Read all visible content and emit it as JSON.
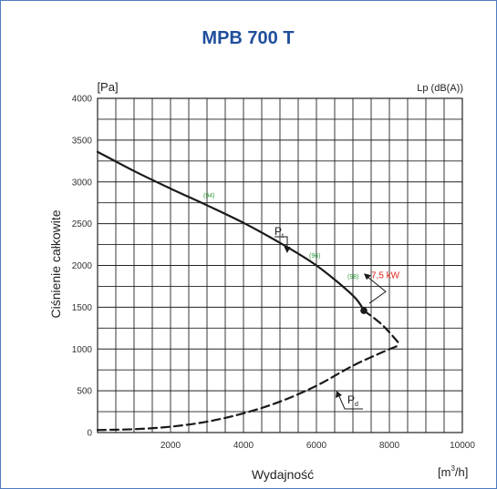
{
  "chart_data": {
    "type": "line",
    "title": "MPB 700 T",
    "xlabel": "Wydajność",
    "ylabel": "Ciśnienie całkowite",
    "x_unit_base": "[m",
    "x_unit_sup": "3",
    "x_unit_tail": "/h]",
    "y_unit": "[Pa]",
    "noise_label": "Lp (dB(A))",
    "xlim": [
      0,
      10000
    ],
    "ylim": [
      0,
      4000
    ],
    "x_ticks": [
      "2000",
      "4000",
      "6000",
      "8000",
      "10000"
    ],
    "y_ticks": [
      "0",
      "500",
      "1000",
      "1500",
      "2000",
      "2500",
      "3000",
      "3500",
      "4000"
    ],
    "grid": true,
    "colors": {
      "title": "#1f4e9c",
      "curve": "#1a1a1a",
      "noise": "#2e9e3e",
      "power": "#e0251b",
      "grid": "#222222",
      "frame": "#4f7bbf"
    },
    "series": [
      {
        "name": "Pt",
        "label_main": "P",
        "label_sub": "t",
        "style": "solid",
        "x": [
          0,
          1000,
          2000,
          3000,
          4000,
          5000,
          6000,
          7000,
          7300
        ],
        "y": [
          3360,
          3130,
          2920,
          2720,
          2510,
          2270,
          2000,
          1640,
          1460
        ]
      },
      {
        "name": "Pt-extension",
        "style": "dashed",
        "x": [
          7300,
          7800,
          8300
        ],
        "y": [
          1460,
          1290,
          1050
        ]
      },
      {
        "name": "Pd",
        "label_main": "P",
        "label_sub": "d",
        "style": "dashed",
        "x": [
          0,
          1000,
          2000,
          3000,
          4000,
          5000,
          6000,
          7000,
          7800,
          8300
        ],
        "y": [
          30,
          40,
          70,
          130,
          230,
          370,
          560,
          800,
          960,
          1050
        ]
      }
    ],
    "noise_points": [
      {
        "label": "(94)",
        "x": 2900,
        "y": 2810
      },
      {
        "label": "(96)",
        "x": 5800,
        "y": 2090
      },
      {
        "label": "(98)",
        "x": 6850,
        "y": 1840
      }
    ],
    "operating_point": {
      "x": 7300,
      "y": 1460
    },
    "power_annotation": {
      "label": "7,5 kW",
      "x": 7500,
      "y": 1850
    }
  }
}
